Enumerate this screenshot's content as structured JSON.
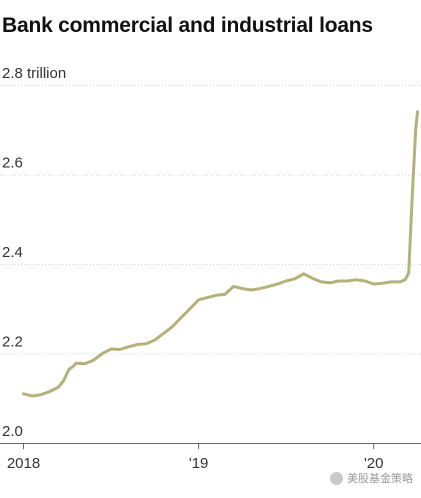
{
  "title": "Bank commercial and industrial loans",
  "watermark": {
    "text": "美股基金策略"
  },
  "chart_data": {
    "type": "line",
    "title": "Bank commercial and industrial loans",
    "unit": "trillion",
    "y_ticks": [
      {
        "value": 2.8,
        "label": "2.8 trillion"
      },
      {
        "value": 2.6,
        "label": "2.6"
      },
      {
        "value": 2.4,
        "label": "2.4"
      },
      {
        "value": 2.2,
        "label": "2.2"
      },
      {
        "value": 2.0,
        "label": "2.0"
      }
    ],
    "x_ticks": [
      {
        "value": 2018.0,
        "label": "2018"
      },
      {
        "value": 2019.0,
        "label": "'19"
      },
      {
        "value": 2020.0,
        "label": "'20"
      }
    ],
    "xlim": [
      2017.98,
      2020.27
    ],
    "ylim": [
      2.0,
      2.8
    ],
    "grid": true,
    "line_color": "#b5b17b",
    "series": [
      {
        "name": "",
        "x": [
          2018.0,
          2018.02,
          2018.05,
          2018.1,
          2018.15,
          2018.2,
          2018.23,
          2018.26,
          2018.28,
          2018.3,
          2018.35,
          2018.4,
          2018.45,
          2018.5,
          2018.55,
          2018.6,
          2018.65,
          2018.7,
          2018.75,
          2018.8,
          2018.85,
          2018.9,
          2018.95,
          2019.0,
          2019.05,
          2019.1,
          2019.15,
          2019.2,
          2019.25,
          2019.3,
          2019.35,
          2019.4,
          2019.45,
          2019.5,
          2019.55,
          2019.6,
          2019.65,
          2019.7,
          2019.75,
          2019.8,
          2019.85,
          2019.9,
          2019.95,
          2020.0,
          2020.05,
          2020.1,
          2020.15,
          2020.18,
          2020.2,
          2020.22,
          2020.24,
          2020.25
        ],
        "y": [
          2.11,
          2.108,
          2.105,
          2.108,
          2.115,
          2.125,
          2.14,
          2.165,
          2.17,
          2.178,
          2.177,
          2.185,
          2.2,
          2.21,
          2.209,
          2.215,
          2.22,
          2.222,
          2.23,
          2.245,
          2.26,
          2.28,
          2.3,
          2.32,
          2.325,
          2.33,
          2.332,
          2.35,
          2.345,
          2.342,
          2.345,
          2.35,
          2.355,
          2.362,
          2.367,
          2.378,
          2.368,
          2.36,
          2.358,
          2.362,
          2.362,
          2.365,
          2.362,
          2.355,
          2.357,
          2.36,
          2.36,
          2.365,
          2.38,
          2.55,
          2.7,
          2.74
        ]
      }
    ]
  }
}
